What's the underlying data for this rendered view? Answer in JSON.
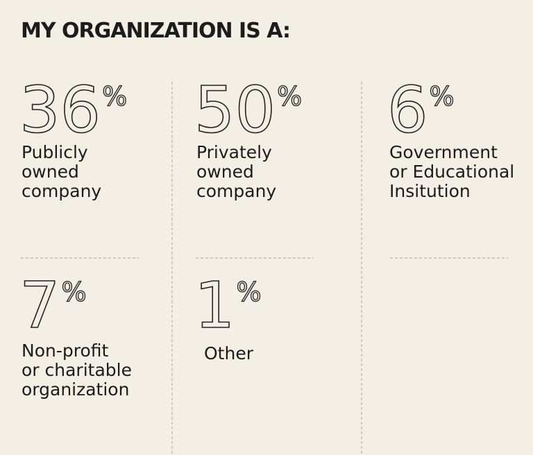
{
  "title": "MY ORGANIZATION IS A:",
  "items": [
    {
      "value": 36,
      "unit": "%",
      "label": [
        "Publicly",
        "owned",
        "company"
      ]
    },
    {
      "value": 50,
      "unit": "%",
      "label": [
        "Privately",
        "owned",
        "company"
      ]
    },
    {
      "value": 6,
      "unit": "%",
      "label": [
        "Government",
        "or Educational",
        "Insitution"
      ]
    },
    {
      "value": 7,
      "unit": "%",
      "label": [
        "Non-profit",
        "or charitable",
        "organization"
      ]
    },
    {
      "value": 1,
      "unit": "%",
      "label": [
        "Other"
      ]
    }
  ]
}
